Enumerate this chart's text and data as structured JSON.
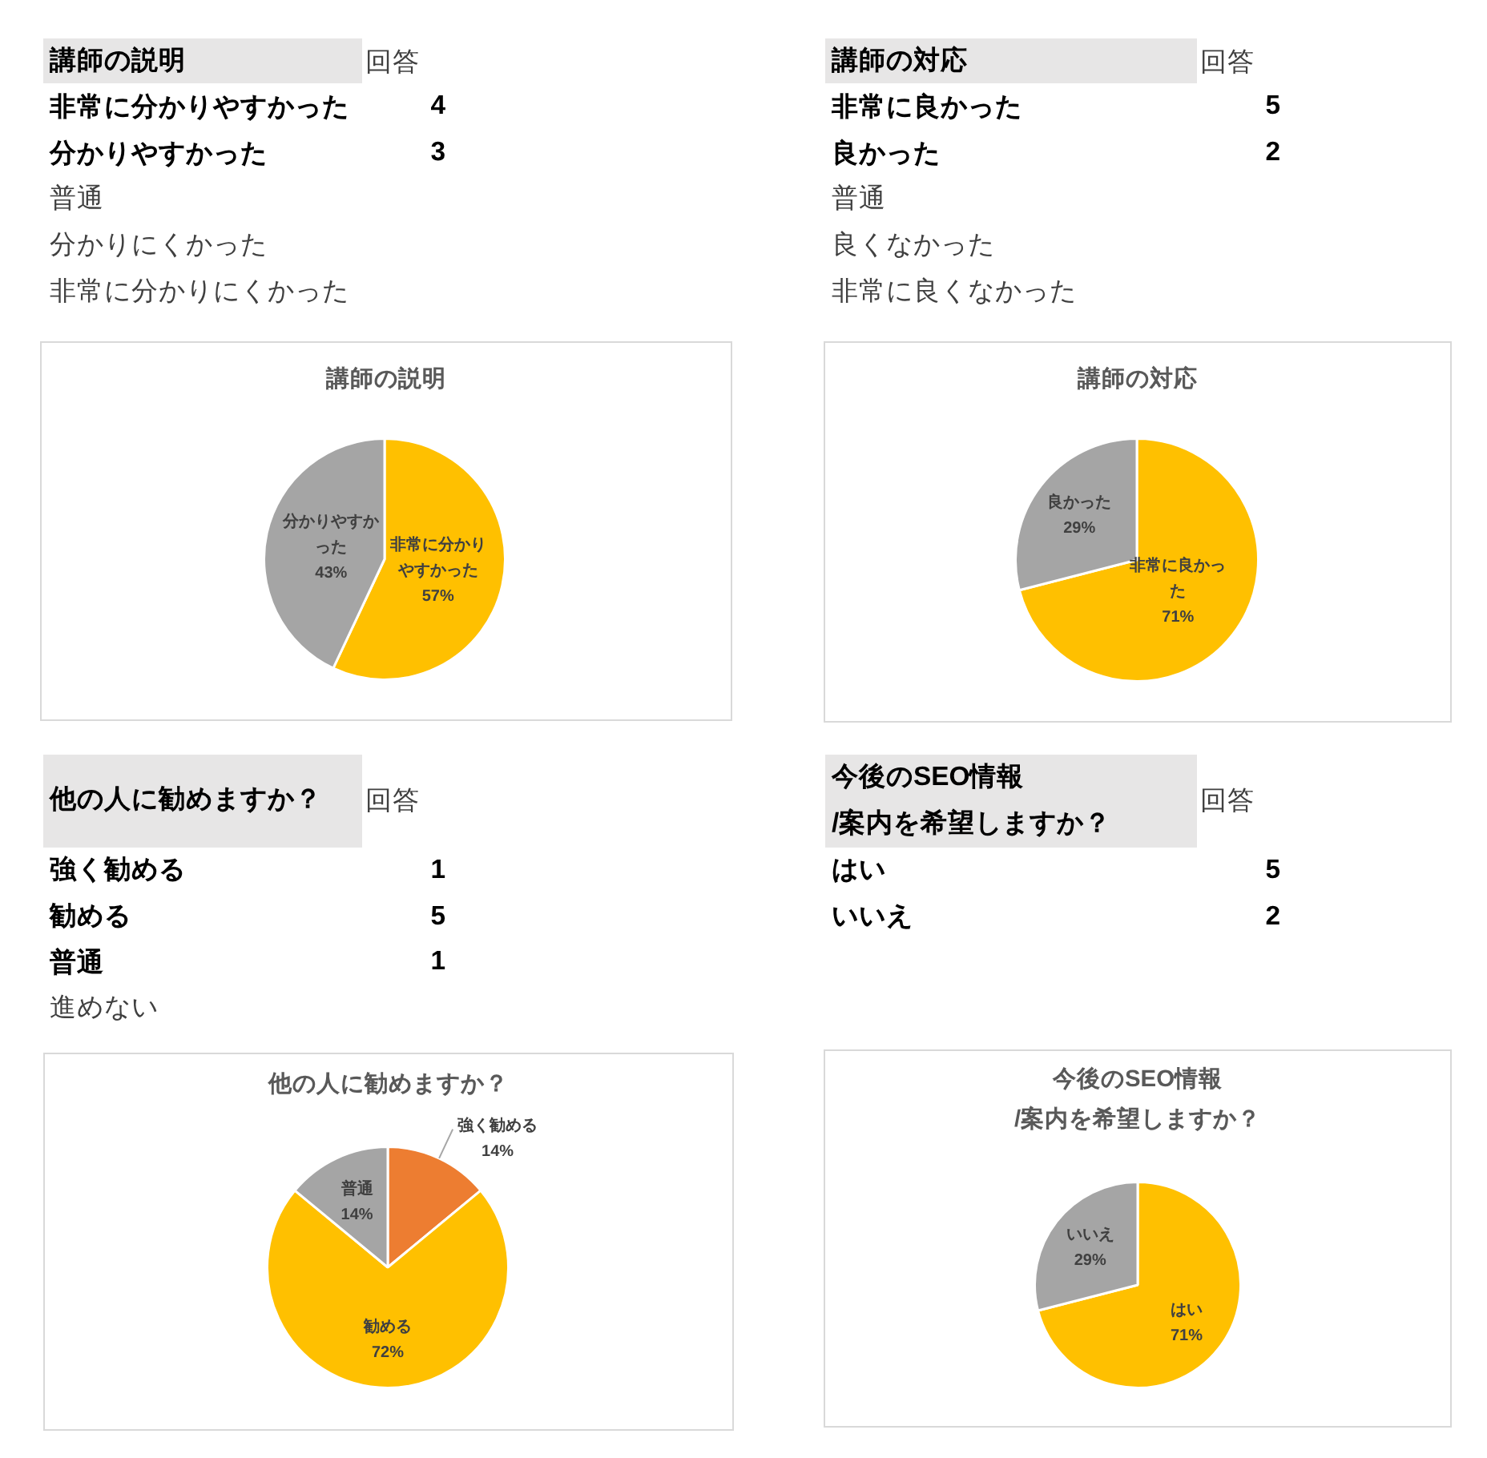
{
  "chart_data": [
    {
      "type": "other",
      "title": "講師の説明",
      "categories": [
        "非常に分かりやすかった",
        "分かりやすかった",
        "普通",
        "分かりにくかった",
        "非常に分かりにくかった"
      ],
      "values": [
        4,
        3,
        null,
        null,
        null
      ],
      "data_labels": true,
      "annotations": [
        "回答"
      ]
    },
    {
      "type": "other",
      "title": "講師の対応",
      "categories": [
        "非常に良かった",
        "良かった",
        "普通",
        "良くなかった",
        "非常に良くなかった"
      ],
      "values": [
        5,
        2,
        null,
        null,
        null
      ],
      "data_labels": true,
      "annotations": [
        "回答"
      ]
    },
    {
      "type": "pie",
      "title": "講師の説明",
      "categories": [
        "非常に分かりやすかった",
        "分かりやすかった"
      ],
      "values": [
        57,
        43
      ],
      "colors": [
        "#ffc000",
        "#a5a5a5"
      ],
      "value_labels": [
        "57%",
        "43%"
      ]
    },
    {
      "type": "pie",
      "title": "講師の対応",
      "categories": [
        "非常に良かった",
        "良かった"
      ],
      "values": [
        71,
        29
      ],
      "colors": [
        "#ffc000",
        "#a5a5a5"
      ],
      "value_labels": [
        "71%",
        "29%"
      ]
    },
    {
      "type": "other",
      "title": "他の人に勧めますか？",
      "categories": [
        "強く勧める",
        "勧める",
        "普通",
        "進めない"
      ],
      "values": [
        1,
        5,
        1,
        null
      ],
      "data_labels": true,
      "annotations": [
        "回答"
      ]
    },
    {
      "type": "other",
      "title": "今後のSEO情報\n/案内を希望しますか？",
      "categories": [
        "はい",
        "いいえ"
      ],
      "values": [
        5,
        2
      ],
      "data_labels": true,
      "annotations": [
        "回答"
      ]
    },
    {
      "type": "pie",
      "title": "他の人に勧めますか？",
      "categories": [
        "強く勧める",
        "勧める",
        "普通"
      ],
      "values": [
        14,
        72,
        14
      ],
      "colors": [
        "#ed7d31",
        "#ffc000",
        "#a5a5a5"
      ],
      "value_labels": [
        "14%",
        "72%",
        "14%"
      ]
    },
    {
      "type": "pie",
      "title": "今後のSEO情報\n/案内を希望しますか？",
      "categories": [
        "はい",
        "いいえ"
      ],
      "values": [
        71,
        29
      ],
      "colors": [
        "#ffc000",
        "#a5a5a5"
      ],
      "value_labels": [
        "71%",
        "29%"
      ]
    }
  ]
}
